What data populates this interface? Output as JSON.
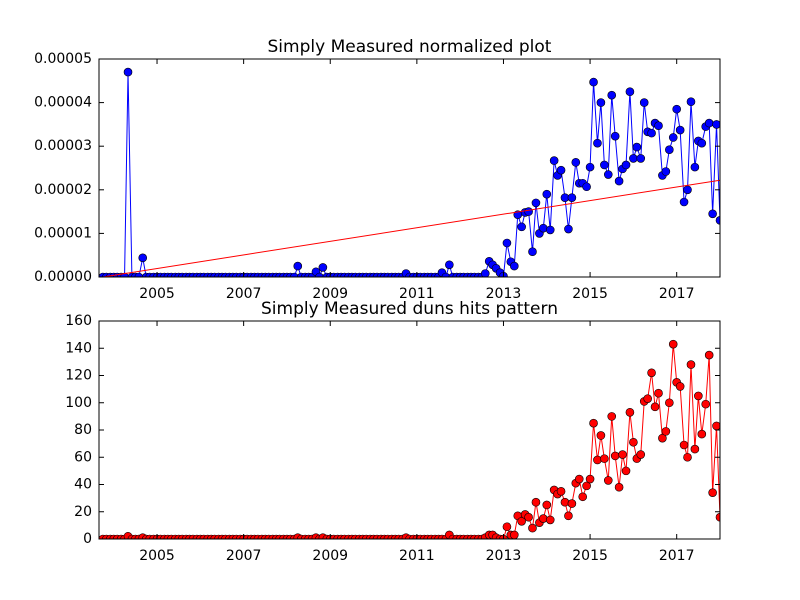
{
  "chart_data": [
    {
      "type": "line",
      "title": "Simply Measured normalized plot",
      "color": "#0000ff",
      "x": [
        2003.75,
        2003.83,
        2003.92,
        2004,
        2004.08,
        2004.17,
        2004.25,
        2004.33,
        2004.42,
        2004.5,
        2004.58,
        2004.67,
        2004.75,
        2004.83,
        2004.92,
        2005,
        2005.08,
        2005.17,
        2005.25,
        2005.33,
        2005.42,
        2005.5,
        2005.58,
        2005.67,
        2005.75,
        2005.83,
        2005.92,
        2006,
        2006.08,
        2006.17,
        2006.25,
        2006.33,
        2006.42,
        2006.5,
        2006.58,
        2006.67,
        2006.75,
        2006.83,
        2006.92,
        2007,
        2007.08,
        2007.17,
        2007.25,
        2007.33,
        2007.42,
        2007.5,
        2007.58,
        2007.67,
        2007.75,
        2007.83,
        2007.92,
        2008,
        2008.08,
        2008.17,
        2008.25,
        2008.33,
        2008.42,
        2008.5,
        2008.58,
        2008.67,
        2008.75,
        2008.83,
        2008.92,
        2009,
        2009.08,
        2009.17,
        2009.25,
        2009.33,
        2009.42,
        2009.5,
        2009.58,
        2009.67,
        2009.75,
        2009.83,
        2009.92,
        2010,
        2010.08,
        2010.17,
        2010.25,
        2010.33,
        2010.42,
        2010.5,
        2010.58,
        2010.67,
        2010.75,
        2010.83,
        2010.92,
        2011,
        2011.08,
        2011.17,
        2011.25,
        2011.33,
        2011.42,
        2011.5,
        2011.58,
        2011.67,
        2011.75,
        2011.83,
        2011.92,
        2012,
        2012.08,
        2012.17,
        2012.25,
        2012.33,
        2012.42,
        2012.5,
        2012.58,
        2012.67,
        2012.75,
        2012.83,
        2012.92,
        2013,
        2013.08,
        2013.17,
        2013.25,
        2013.33,
        2013.42,
        2013.5,
        2013.58,
        2013.67,
        2013.75,
        2013.83,
        2013.92,
        2014,
        2014.08,
        2014.17,
        2014.25,
        2014.33,
        2014.42,
        2014.5,
        2014.58,
        2014.67,
        2014.75,
        2014.83,
        2014.92,
        2015,
        2015.08,
        2015.17,
        2015.25,
        2015.33,
        2015.42,
        2015.5,
        2015.58,
        2015.67,
        2015.75,
        2015.83,
        2015.92,
        2016,
        2016.08,
        2016.17,
        2016.25,
        2016.33,
        2016.42,
        2016.5,
        2016.58,
        2016.67,
        2016.75,
        2016.83,
        2016.92,
        2017,
        2017.08,
        2017.17,
        2017.25,
        2017.33,
        2017.42,
        2017.5,
        2017.58,
        2017.67,
        2017.75,
        2017.83,
        2017.92,
        2018
      ],
      "values": [
        0,
        0,
        0,
        0,
        0,
        0,
        0,
        4.7e-05,
        0,
        0,
        0,
        4.4e-06,
        0,
        0,
        0,
        0,
        0,
        0,
        0,
        0,
        0,
        0,
        0,
        0,
        0,
        0,
        0,
        0,
        0,
        0,
        0,
        0,
        0,
        0,
        0,
        0,
        0,
        0,
        0,
        0,
        0,
        0,
        0,
        0,
        0,
        0,
        0,
        0,
        0,
        0,
        0,
        0,
        0,
        0,
        2.5e-06,
        0,
        0,
        0,
        0,
        1.2e-06,
        0,
        2.2e-06,
        0,
        0,
        0,
        0,
        0,
        0,
        0,
        0,
        0,
        0,
        0,
        0,
        0,
        0,
        0,
        0,
        0,
        0,
        0,
        0,
        0,
        0,
        8e-07,
        0,
        0,
        0,
        0,
        0,
        0,
        0,
        0,
        0,
        1e-06,
        0,
        2.8e-06,
        0,
        0,
        0,
        0,
        0,
        0,
        0,
        0,
        0,
        8e-07,
        3.6e-06,
        2.8e-06,
        2e-06,
        1e-06,
        2e-07,
        7.8e-06,
        3.5e-06,
        2.5e-06,
        1.43e-05,
        1.15e-05,
        1.48e-05,
        1.5e-05,
        5.8e-06,
        1.7e-05,
        1e-05,
        1.12e-05,
        1.9e-05,
        1.08e-05,
        2.67e-05,
        2.33e-05,
        2.45e-05,
        1.82e-05,
        1.1e-05,
        1.82e-05,
        2.63e-05,
        2.15e-05,
        2.15e-05,
        2.07e-05,
        2.52e-05,
        4.47e-05,
        3.07e-05,
        4e-05,
        2.57e-05,
        2.35e-05,
        4.17e-05,
        3.23e-05,
        2.2e-05,
        2.48e-05,
        2.57e-05,
        4.25e-05,
        2.72e-05,
        2.98e-05,
        2.72e-05,
        4e-05,
        3.33e-05,
        3.3e-05,
        3.53e-05,
        3.47e-05,
        2.33e-05,
        2.42e-05,
        2.92e-05,
        3.2e-05,
        3.85e-05,
        3.37e-05,
        1.72e-05,
        2e-05,
        4.02e-05,
        2.52e-05,
        3.12e-05,
        3.07e-05,
        3.45e-05,
        3.53e-05,
        1.45e-05,
        3.5e-05,
        1.3e-05
      ],
      "trend": {
        "x": [
          2003.75,
          2018
        ],
        "values": [
          0,
          2.22e-05
        ],
        "color": "#ff0000"
      },
      "xlim": [
        2003.66,
        2018
      ],
      "xticks": [
        2005,
        2007,
        2009,
        2011,
        2013,
        2015,
        2017
      ],
      "ylim": [
        0,
        5e-05
      ],
      "yticks": [
        {
          "value": 0,
          "label": "0.00000"
        },
        {
          "value": 1e-05,
          "label": "0.00001"
        },
        {
          "value": 2e-05,
          "label": "0.00002"
        },
        {
          "value": 3e-05,
          "label": "0.00003"
        },
        {
          "value": 4e-05,
          "label": "0.00004"
        },
        {
          "value": 5e-05,
          "label": "0.00005"
        }
      ]
    },
    {
      "type": "line",
      "title": "Simply Measured duns hits pattern",
      "color": "#ff0000",
      "x": [
        2003.75,
        2003.83,
        2003.92,
        2004,
        2004.08,
        2004.17,
        2004.25,
        2004.33,
        2004.42,
        2004.5,
        2004.58,
        2004.67,
        2004.75,
        2004.83,
        2004.92,
        2005,
        2005.08,
        2005.17,
        2005.25,
        2005.33,
        2005.42,
        2005.5,
        2005.58,
        2005.67,
        2005.75,
        2005.83,
        2005.92,
        2006,
        2006.08,
        2006.17,
        2006.25,
        2006.33,
        2006.42,
        2006.5,
        2006.58,
        2006.67,
        2006.75,
        2006.83,
        2006.92,
        2007,
        2007.08,
        2007.17,
        2007.25,
        2007.33,
        2007.42,
        2007.5,
        2007.58,
        2007.67,
        2007.75,
        2007.83,
        2007.92,
        2008,
        2008.08,
        2008.17,
        2008.25,
        2008.33,
        2008.42,
        2008.5,
        2008.58,
        2008.67,
        2008.75,
        2008.83,
        2008.92,
        2009,
        2009.08,
        2009.17,
        2009.25,
        2009.33,
        2009.42,
        2009.5,
        2009.58,
        2009.67,
        2009.75,
        2009.83,
        2009.92,
        2010,
        2010.08,
        2010.17,
        2010.25,
        2010.33,
        2010.42,
        2010.5,
        2010.58,
        2010.67,
        2010.75,
        2010.83,
        2010.92,
        2011,
        2011.08,
        2011.17,
        2011.25,
        2011.33,
        2011.42,
        2011.5,
        2011.58,
        2011.67,
        2011.75,
        2011.83,
        2011.92,
        2012,
        2012.08,
        2012.17,
        2012.25,
        2012.33,
        2012.42,
        2012.5,
        2012.58,
        2012.67,
        2012.75,
        2012.83,
        2012.92,
        2013,
        2013.08,
        2013.17,
        2013.25,
        2013.33,
        2013.42,
        2013.5,
        2013.58,
        2013.67,
        2013.75,
        2013.83,
        2013.92,
        2014,
        2014.08,
        2014.17,
        2014.25,
        2014.33,
        2014.42,
        2014.5,
        2014.58,
        2014.67,
        2014.75,
        2014.83,
        2014.92,
        2015,
        2015.08,
        2015.17,
        2015.25,
        2015.33,
        2015.42,
        2015.5,
        2015.58,
        2015.67,
        2015.75,
        2015.83,
        2015.92,
        2016,
        2016.08,
        2016.17,
        2016.25,
        2016.33,
        2016.42,
        2016.5,
        2016.58,
        2016.67,
        2016.75,
        2016.83,
        2016.92,
        2017,
        2017.08,
        2017.17,
        2017.25,
        2017.33,
        2017.42,
        2017.5,
        2017.58,
        2017.67,
        2017.75,
        2017.83,
        2017.92,
        2018
      ],
      "values": [
        0,
        0,
        0,
        0,
        0,
        0,
        0,
        2,
        0,
        0,
        0,
        1,
        0,
        0,
        0,
        0,
        0,
        0,
        0,
        0,
        0,
        0,
        0,
        0,
        0,
        0,
        0,
        0,
        0,
        0,
        0,
        0,
        0,
        0,
        0,
        0,
        0,
        0,
        0,
        0,
        0,
        0,
        0,
        0,
        0,
        0,
        0,
        0,
        0,
        0,
        0,
        0,
        0,
        0,
        1,
        0,
        0,
        0,
        0,
        1,
        0,
        1,
        0,
        0,
        0,
        0,
        0,
        0,
        0,
        0,
        0,
        0,
        0,
        0,
        0,
        0,
        0,
        0,
        0,
        0,
        0,
        0,
        0,
        0,
        1,
        0,
        0,
        0,
        0,
        0,
        0,
        0,
        0,
        0,
        0,
        0,
        3,
        0,
        0,
        0,
        0,
        0,
        0,
        0,
        0,
        0,
        1,
        3,
        3,
        1,
        0,
        0,
        9,
        3,
        3,
        17,
        13,
        18,
        16,
        8,
        27,
        12,
        15,
        25,
        14,
        36,
        33,
        35,
        27,
        17,
        26,
        41,
        44,
        31,
        39,
        44,
        85,
        58,
        76,
        59,
        43,
        90,
        61,
        38,
        62,
        50,
        93,
        71,
        59,
        62,
        101,
        103,
        122,
        97,
        107,
        74,
        79,
        100,
        143,
        115,
        112,
        69,
        60,
        128,
        66,
        105,
        77,
        99,
        135,
        34,
        83,
        16
      ],
      "xlim": [
        2003.66,
        2018
      ],
      "xticks": [
        2005,
        2007,
        2009,
        2011,
        2013,
        2015,
        2017
      ],
      "ylim": [
        0,
        160
      ],
      "yticks": [
        0,
        20,
        40,
        60,
        80,
        100,
        120,
        140,
        160
      ]
    }
  ]
}
